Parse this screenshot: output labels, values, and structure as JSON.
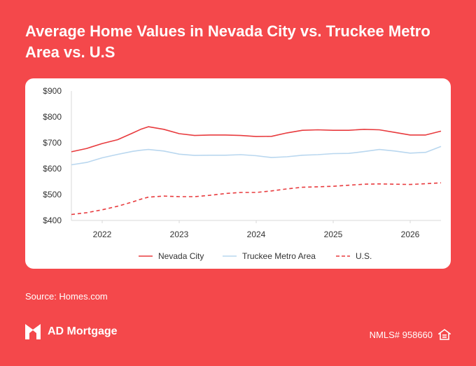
{
  "page": {
    "title": "Average Home Values in Nevada City vs. Truckee Metro Area vs. U.S",
    "source": "Source: Homes.com",
    "brand_name": "AD Mortgage",
    "nmls": "NMLS# 958660",
    "icons": {
      "logo": "ad-mortgage-logo-icon",
      "equal_housing": "equal-housing-icon"
    },
    "colors": {
      "background": "#f4484b",
      "nevada_city": "#e83b3e",
      "truckee": "#b9d7ef",
      "us": "#e83b3e"
    }
  },
  "chart_data": {
    "type": "line",
    "title": "Average Home Values in Nevada City vs. Truckee Metro Area vs. U.S",
    "xlabel": "",
    "ylabel": "",
    "x_ticks": [
      "2022",
      "2023",
      "2024",
      "2025",
      "2026"
    ],
    "y_ticks": [
      "$400",
      "$500",
      "$600",
      "$700",
      "$800",
      "$900"
    ],
    "xlim": [
      2021.6,
      2026.4
    ],
    "ylim": [
      400,
      900
    ],
    "grid": false,
    "legend_position": "bottom",
    "x": [
      2021.6,
      2021.8,
      2022.0,
      2022.2,
      2022.4,
      2022.5,
      2022.6,
      2022.8,
      2023.0,
      2023.2,
      2023.4,
      2023.6,
      2023.8,
      2024.0,
      2024.2,
      2024.4,
      2024.6,
      2024.8,
      2025.0,
      2025.2,
      2025.4,
      2025.6,
      2025.8,
      2026.0,
      2026.2,
      2026.4
    ],
    "series": [
      {
        "name": "Nevada City",
        "style": "solid",
        "color": "#e83b3e",
        "values": [
          665,
          678,
          697,
          712,
          738,
          752,
          762,
          752,
          735,
          728,
          730,
          730,
          728,
          724,
          725,
          738,
          748,
          750,
          748,
          748,
          752,
          750,
          740,
          730,
          730,
          745
        ]
      },
      {
        "name": "Truckee Metro Area",
        "style": "solid",
        "color": "#b9d7ef",
        "values": [
          615,
          624,
          642,
          655,
          667,
          671,
          674,
          668,
          656,
          651,
          652,
          652,
          654,
          650,
          643,
          646,
          652,
          654,
          658,
          659,
          666,
          674,
          668,
          660,
          663,
          686
        ]
      },
      {
        "name": "U.S.",
        "style": "dashed",
        "color": "#e83b3e",
        "values": [
          423,
          430,
          441,
          455,
          472,
          482,
          490,
          494,
          492,
          492,
          497,
          504,
          508,
          508,
          514,
          522,
          528,
          530,
          532,
          536,
          540,
          541,
          540,
          539,
          542,
          545
        ]
      }
    ]
  }
}
